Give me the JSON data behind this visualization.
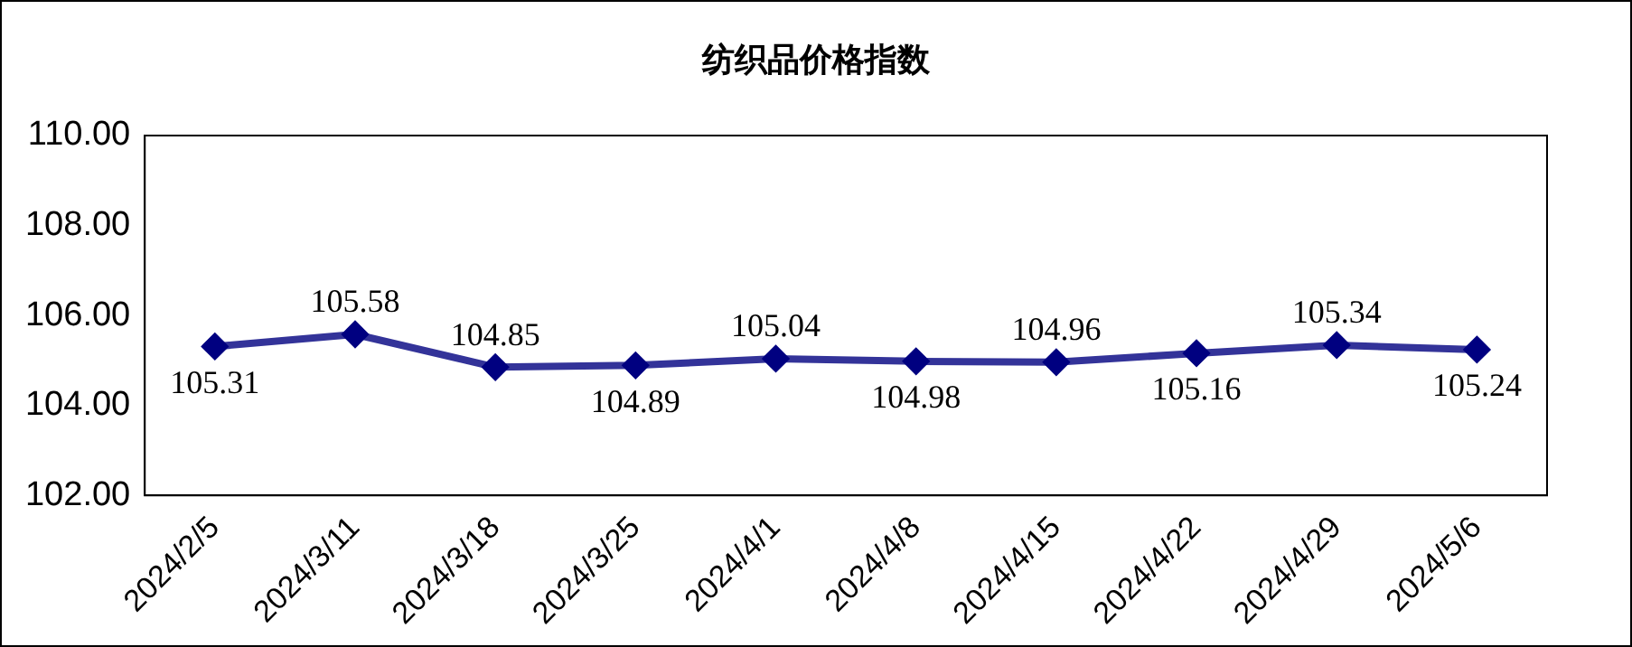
{
  "chart_data": {
    "type": "line",
    "title": "纺织品价格指数",
    "categories": [
      "2024/2/5",
      "2024/3/11",
      "2024/3/18",
      "2024/3/25",
      "2024/4/1",
      "2024/4/8",
      "2024/4/15",
      "2024/4/22",
      "2024/4/29",
      "2024/5/6"
    ],
    "series": [
      {
        "color": "#333399",
        "values": [
          105.31,
          105.58,
          104.85,
          104.89,
          105.04,
          104.98,
          104.96,
          105.16,
          105.34,
          105.24
        ]
      }
    ],
    "ylim": [
      102,
      110
    ],
    "yticks": [
      {
        "value": 102,
        "label": "102.00"
      },
      {
        "value": 104,
        "label": "104.00"
      },
      {
        "value": 106,
        "label": "106.00"
      },
      {
        "value": 108,
        "label": "108.00"
      },
      {
        "value": 110,
        "label": "110.00"
      }
    ],
    "marker": "diamond",
    "line_style": "solid",
    "data_labels": true,
    "grid": false,
    "legend": false
  }
}
